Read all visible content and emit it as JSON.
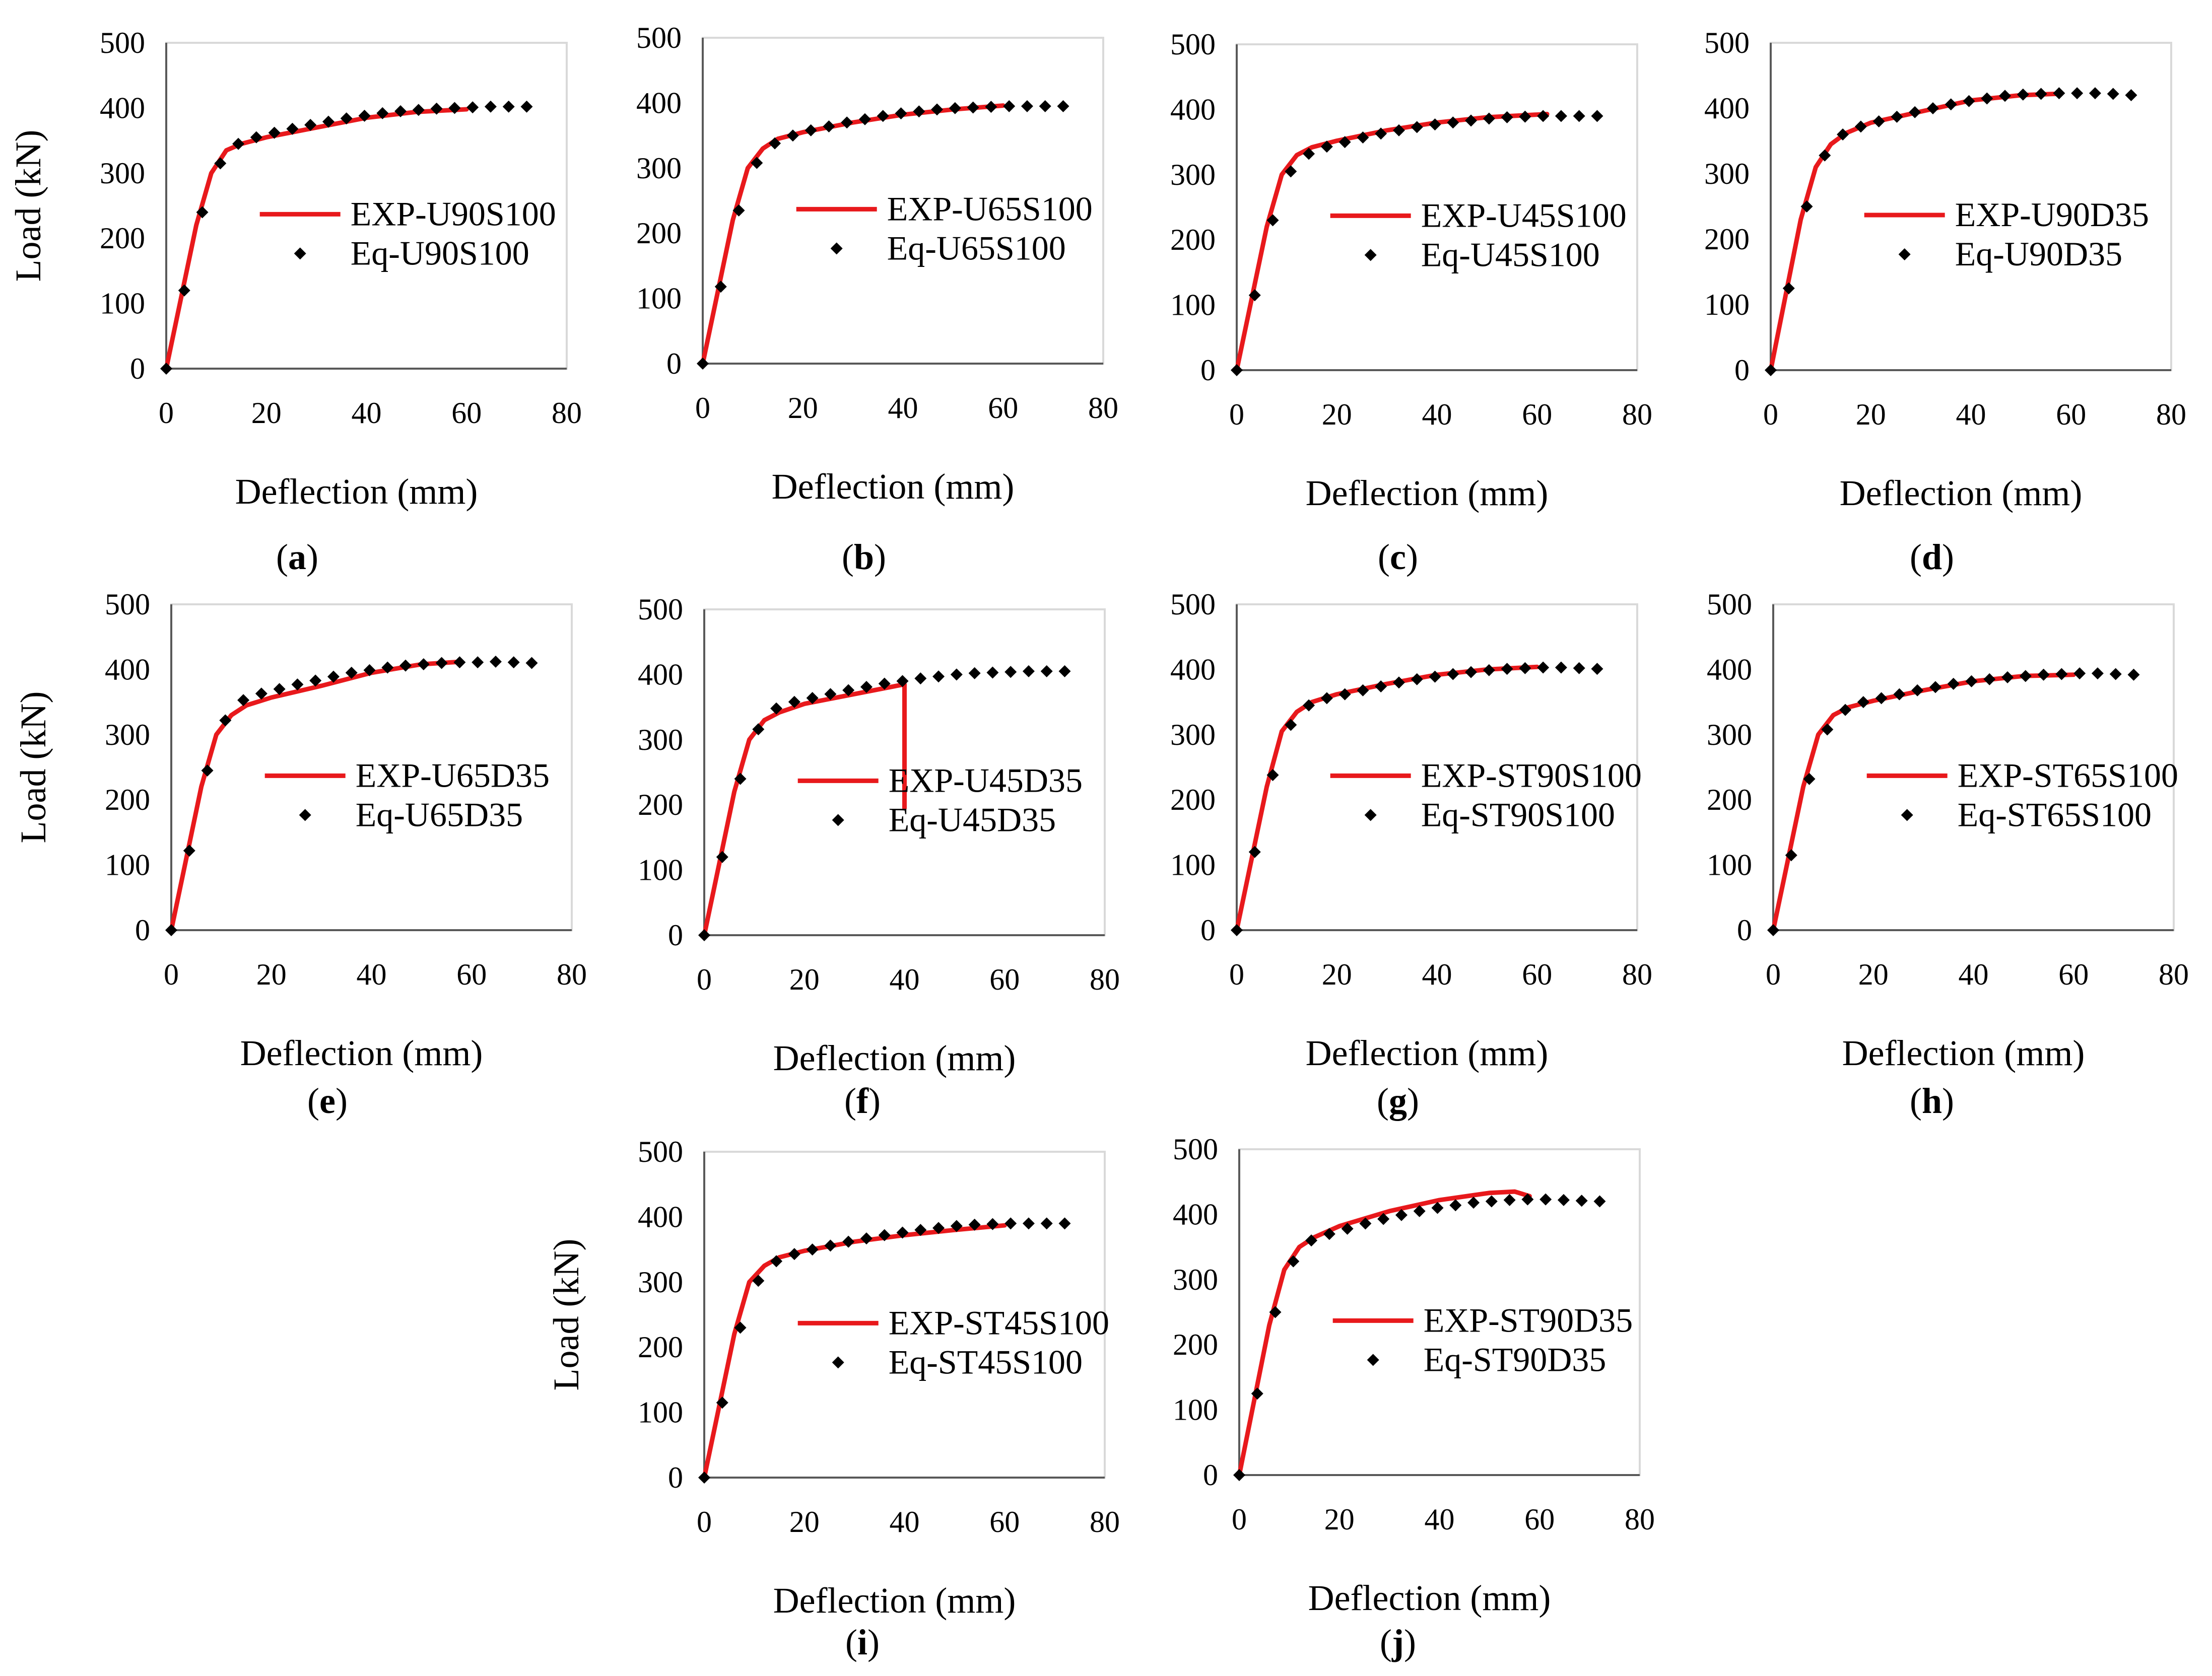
{
  "figure": {
    "panel_letters": [
      "a",
      "b",
      "c",
      "d",
      "e",
      "f",
      "g",
      "h",
      "i",
      "j"
    ]
  },
  "series_colors": {
    "experimental": "#e8191c",
    "equation": "#000000"
  },
  "chart_data": [
    {
      "type": "line",
      "panel": "a",
      "caption": "(a)",
      "xlabel": "Deflection (mm)",
      "ylabel": "Load (kN)",
      "xlim": [
        0,
        80
      ],
      "ylim": [
        0,
        500
      ],
      "xticks": [
        "0",
        "20",
        "40",
        "60",
        "80"
      ],
      "yticks": [
        "0",
        "100",
        "200",
        "300",
        "400",
        "500"
      ],
      "series": [
        {
          "name": "EXP-U90S100",
          "style": "line",
          "x": [
            0,
            3,
            6,
            9,
            12,
            15,
            20,
            30,
            40,
            50,
            60
          ],
          "y": [
            0,
            110,
            220,
            300,
            335,
            345,
            355,
            370,
            385,
            394,
            398
          ]
        },
        {
          "name": "Eq-U90S100",
          "style": "markers",
          "x": [
            0,
            3.6,
            7.2,
            10.8,
            14.4,
            18,
            21.6,
            25.2,
            28.8,
            32.4,
            36,
            39.6,
            43.2,
            46.8,
            50.4,
            54,
            57.6,
            61.2,
            64.8,
            68.4,
            72
          ],
          "y": [
            0,
            120,
            240,
            315,
            345,
            355,
            362,
            368,
            374,
            379,
            384,
            388,
            392,
            395,
            397,
            399,
            400,
            401,
            402,
            402,
            402
          ]
        }
      ]
    },
    {
      "type": "line",
      "panel": "b",
      "caption": "(b)",
      "xlabel": "Deflection (mm)",
      "ylabel": "",
      "xlim": [
        0,
        80
      ],
      "ylim": [
        0,
        500
      ],
      "xticks": [
        "0",
        "20",
        "40",
        "60",
        "80"
      ],
      "yticks": [
        "0",
        "100",
        "200",
        "300",
        "400",
        "500"
      ],
      "series": [
        {
          "name": "EXP-U65S100",
          "style": "line",
          "x": [
            0,
            3,
            6,
            9,
            12,
            15,
            20,
            30,
            40,
            50,
            60
          ],
          "y": [
            0,
            110,
            220,
            300,
            330,
            345,
            355,
            370,
            382,
            390,
            396
          ]
        },
        {
          "name": "Eq-U65S100",
          "style": "markers",
          "x": [
            0,
            3.6,
            7.2,
            10.8,
            14.4,
            18,
            21.6,
            25.2,
            28.8,
            32.4,
            36,
            39.6,
            43.2,
            46.8,
            50.4,
            54,
            57.6,
            61.2,
            64.8,
            68.4,
            72
          ],
          "y": [
            0,
            118,
            235,
            308,
            338,
            350,
            358,
            364,
            370,
            375,
            380,
            384,
            387,
            390,
            392,
            393,
            394,
            395,
            395,
            395,
            395
          ]
        }
      ]
    },
    {
      "type": "line",
      "panel": "c",
      "caption": "(c)",
      "xlabel": "Deflection (mm)",
      "ylabel": "",
      "xlim": [
        0,
        80
      ],
      "ylim": [
        0,
        500
      ],
      "xticks": [
        "0",
        "20",
        "40",
        "60",
        "80"
      ],
      "yticks": [
        "0",
        "100",
        "200",
        "300",
        "400",
        "500"
      ],
      "series": [
        {
          "name": "EXP-U45S100",
          "style": "line",
          "x": [
            0,
            3,
            6,
            9,
            12,
            15,
            20,
            30,
            40,
            50,
            62
          ],
          "y": [
            0,
            110,
            220,
            300,
            330,
            342,
            352,
            368,
            380,
            388,
            393
          ]
        },
        {
          "name": "Eq-U45S100",
          "style": "markers",
          "x": [
            0,
            3.6,
            7.2,
            10.8,
            14.4,
            18,
            21.6,
            25.2,
            28.8,
            32.4,
            36,
            39.6,
            43.2,
            46.8,
            50.4,
            54,
            57.6,
            61.2,
            64.8,
            68.4,
            72
          ],
          "y": [
            0,
            115,
            230,
            305,
            332,
            343,
            350,
            357,
            363,
            368,
            373,
            377,
            380,
            383,
            386,
            388,
            389,
            390,
            390,
            390,
            390
          ]
        }
      ]
    },
    {
      "type": "line",
      "panel": "d",
      "caption": "(d)",
      "xlabel": "Deflection (mm)",
      "ylabel": "",
      "xlim": [
        0,
        80
      ],
      "ylim": [
        0,
        500
      ],
      "xticks": [
        "0",
        "20",
        "40",
        "60",
        "80"
      ],
      "yticks": [
        "0",
        "100",
        "200",
        "300",
        "400",
        "500"
      ],
      "series": [
        {
          "name": "EXP-U90D35",
          "style": "line",
          "x": [
            0,
            3,
            6,
            9,
            12,
            15,
            20,
            30,
            40,
            50,
            57
          ],
          "y": [
            0,
            115,
            230,
            310,
            345,
            362,
            378,
            395,
            412,
            420,
            422
          ]
        },
        {
          "name": "Eq-U90D35",
          "style": "markers",
          "x": [
            0,
            3.6,
            7.2,
            10.8,
            14.4,
            18,
            21.6,
            25.2,
            28.8,
            32.4,
            36,
            39.6,
            43.2,
            46.8,
            50.4,
            54,
            57.6,
            61.2,
            64.8,
            68.4,
            72
          ],
          "y": [
            0,
            125,
            250,
            328,
            360,
            372,
            380,
            387,
            394,
            400,
            406,
            411,
            415,
            419,
            421,
            422,
            423,
            423,
            423,
            422,
            420
          ]
        }
      ]
    },
    {
      "type": "line",
      "panel": "e",
      "caption": "(e)",
      "xlabel": "Deflection (mm)",
      "ylabel": "Load (kN)",
      "xlim": [
        0,
        80
      ],
      "ylim": [
        0,
        500
      ],
      "xticks": [
        "0",
        "20",
        "40",
        "60",
        "80"
      ],
      "yticks": [
        "0",
        "100",
        "200",
        "300",
        "400",
        "500"
      ],
      "series": [
        {
          "name": "EXP-U65D35",
          "style": "line",
          "x": [
            0,
            3,
            6,
            9,
            12,
            15,
            20,
            30,
            40,
            50,
            58
          ],
          "y": [
            0,
            110,
            220,
            300,
            330,
            345,
            357,
            375,
            395,
            408,
            412
          ]
        },
        {
          "name": "Eq-U65D35",
          "style": "markers",
          "x": [
            0,
            3.6,
            7.2,
            10.8,
            14.4,
            18,
            21.6,
            25.2,
            28.8,
            32.4,
            36,
            39.6,
            43.2,
            46.8,
            50.4,
            54,
            57.6,
            61.2,
            64.8,
            68.4,
            72
          ],
          "y": [
            0,
            122,
            245,
            322,
            353,
            363,
            370,
            377,
            383,
            389,
            395,
            399,
            403,
            406,
            408,
            410,
            411,
            411,
            412,
            411,
            410
          ]
        }
      ]
    },
    {
      "type": "line",
      "panel": "f",
      "caption": "(f)",
      "xlabel": "Deflection (mm)",
      "ylabel": "",
      "xlim": [
        0,
        80
      ],
      "ylim": [
        0,
        500
      ],
      "xticks": [
        "0",
        "20",
        "40",
        "60",
        "80"
      ],
      "yticks": [
        "0",
        "100",
        "200",
        "300",
        "400",
        "500"
      ],
      "series": [
        {
          "name": "EXP-U45D35",
          "style": "line",
          "x": [
            0,
            3,
            6,
            9,
            12,
            15,
            20,
            30,
            40,
            40,
            40
          ],
          "y": [
            0,
            110,
            220,
            300,
            330,
            342,
            355,
            370,
            385,
            250,
            195
          ]
        },
        {
          "name": "Eq-U45D35",
          "style": "markers",
          "x": [
            0,
            3.6,
            7.2,
            10.8,
            14.4,
            18,
            21.6,
            25.2,
            28.8,
            32.4,
            36,
            39.6,
            43.2,
            46.8,
            50.4,
            54,
            57.6,
            61.2,
            64.8,
            68.4,
            72
          ],
          "y": [
            0,
            120,
            240,
            316,
            348,
            358,
            364,
            370,
            376,
            381,
            386,
            390,
            394,
            397,
            400,
            402,
            403,
            404,
            405,
            405,
            405
          ]
        }
      ]
    },
    {
      "type": "line",
      "panel": "g",
      "caption": "(g)",
      "xlabel": "Deflection (mm)",
      "ylabel": "",
      "xlim": [
        0,
        80
      ],
      "ylim": [
        0,
        500
      ],
      "xticks": [
        "0",
        "20",
        "40",
        "60",
        "80"
      ],
      "yticks": [
        "0",
        "100",
        "200",
        "300",
        "400",
        "500"
      ],
      "series": [
        {
          "name": "EXP-ST90S100",
          "style": "line",
          "x": [
            0,
            3,
            6,
            9,
            12,
            15,
            20,
            30,
            40,
            50,
            60
          ],
          "y": [
            0,
            110,
            220,
            305,
            335,
            350,
            362,
            378,
            392,
            400,
            404
          ]
        },
        {
          "name": "Eq-ST90S100",
          "style": "markers",
          "x": [
            0,
            3.6,
            7.2,
            10.8,
            14.4,
            18,
            21.6,
            25.2,
            28.8,
            32.4,
            36,
            39.6,
            43.2,
            46.8,
            50.4,
            54,
            57.6,
            61.2,
            64.8,
            68.4,
            72
          ],
          "y": [
            0,
            120,
            238,
            315,
            345,
            356,
            362,
            368,
            374,
            380,
            385,
            389,
            393,
            396,
            399,
            401,
            402,
            403,
            403,
            402,
            401
          ]
        }
      ]
    },
    {
      "type": "line",
      "panel": "h",
      "caption": "(h)",
      "xlabel": "Deflection (mm)",
      "ylabel": "",
      "xlim": [
        0,
        80
      ],
      "ylim": [
        0,
        500
      ],
      "xticks": [
        "0",
        "20",
        "40",
        "60",
        "80"
      ],
      "yticks": [
        "0",
        "100",
        "200",
        "300",
        "400",
        "500"
      ],
      "series": [
        {
          "name": "EXP-ST65S100",
          "style": "line",
          "x": [
            0,
            3,
            6,
            9,
            12,
            15,
            20,
            30,
            40,
            50,
            60
          ],
          "y": [
            0,
            110,
            220,
            300,
            330,
            342,
            352,
            368,
            382,
            390,
            392
          ]
        },
        {
          "name": "Eq-ST65S100",
          "style": "markers",
          "x": [
            0,
            3.6,
            7.2,
            10.8,
            14.4,
            18,
            21.6,
            25.2,
            28.8,
            32.4,
            36,
            39.6,
            43.2,
            46.8,
            50.4,
            54,
            57.6,
            61.2,
            64.8,
            68.4,
            72
          ],
          "y": [
            0,
            115,
            232,
            308,
            338,
            350,
            356,
            362,
            368,
            373,
            378,
            382,
            385,
            388,
            390,
            392,
            393,
            394,
            394,
            393,
            392
          ]
        }
      ]
    },
    {
      "type": "line",
      "panel": "i",
      "caption": "(i)",
      "xlabel": "Deflection (mm)",
      "ylabel": "Load (kN)",
      "xlim": [
        0,
        80
      ],
      "ylim": [
        0,
        500
      ],
      "xticks": [
        "0",
        "20",
        "40",
        "60",
        "80"
      ],
      "yticks": [
        "0",
        "100",
        "200",
        "300",
        "400",
        "500"
      ],
      "series": [
        {
          "name": "EXP-ST45S100",
          "style": "line",
          "x": [
            0,
            3,
            6,
            9,
            12,
            15,
            20,
            30,
            40,
            50,
            60
          ],
          "y": [
            0,
            110,
            220,
            300,
            325,
            338,
            348,
            362,
            372,
            380,
            387
          ]
        },
        {
          "name": "Eq-ST45S100",
          "style": "markers",
          "x": [
            0,
            3.6,
            7.2,
            10.8,
            14.4,
            18,
            21.6,
            25.2,
            28.8,
            32.4,
            36,
            39.6,
            43.2,
            46.8,
            50.4,
            54,
            57.6,
            61.2,
            64.8,
            68.4,
            72
          ],
          "y": [
            0,
            115,
            230,
            302,
            332,
            343,
            350,
            356,
            362,
            367,
            372,
            376,
            380,
            383,
            386,
            388,
            389,
            390,
            390,
            390,
            390
          ]
        }
      ]
    },
    {
      "type": "line",
      "panel": "j",
      "caption": "(j)",
      "xlabel": "Deflection (mm)",
      "ylabel": "",
      "xlim": [
        0,
        80
      ],
      "ylim": [
        0,
        500
      ],
      "xticks": [
        "0",
        "20",
        "40",
        "60",
        "80"
      ],
      "yticks": [
        "0",
        "100",
        "200",
        "300",
        "400",
        "500"
      ],
      "series": [
        {
          "name": "EXP-ST90D35",
          "style": "line",
          "x": [
            0,
            3,
            6,
            9,
            12,
            15,
            20,
            30,
            40,
            50,
            55,
            58
          ],
          "y": [
            0,
            115,
            230,
            315,
            350,
            365,
            382,
            405,
            422,
            433,
            435,
            428
          ]
        },
        {
          "name": "Eq-ST90D35",
          "style": "markers",
          "x": [
            0,
            3.6,
            7.2,
            10.8,
            14.4,
            18,
            21.6,
            25.2,
            28.8,
            32.4,
            36,
            39.6,
            43.2,
            46.8,
            50.4,
            54,
            57.6,
            61.2,
            64.8,
            68.4,
            72
          ],
          "y": [
            0,
            125,
            250,
            328,
            360,
            370,
            378,
            386,
            393,
            399,
            405,
            410,
            414,
            418,
            420,
            422,
            423,
            423,
            422,
            421,
            420
          ]
        }
      ]
    }
  ]
}
